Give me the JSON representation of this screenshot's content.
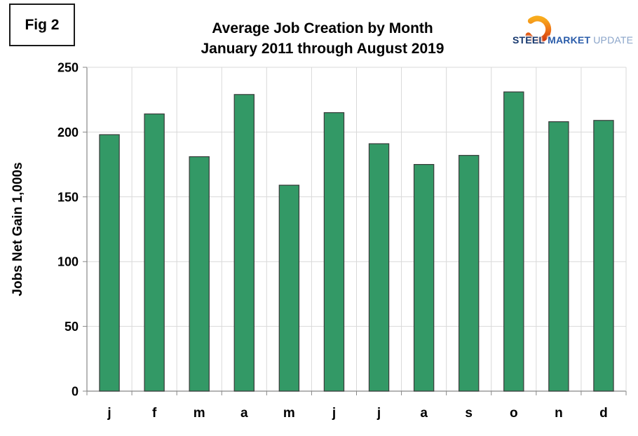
{
  "figure": {
    "label": "Fig 2"
  },
  "title": {
    "line1": "Average Job Creation by Month",
    "line2": "January 2011 through August 2019"
  },
  "logo": {
    "steel": "STEEL",
    "market": "MARKET",
    "update": "UPDATE",
    "colors": {
      "steel_text": "#17386e",
      "market_text": "#2a5caa",
      "update_text": "#8aa4c9",
      "arc_top": "#f8ab1c",
      "arc_mid": "#ee7518",
      "arc_bottom": "#d13a0e"
    }
  },
  "chart_data": {
    "type": "bar",
    "title": "Average Job Creation by Month January 2011 through August 2019",
    "categories": [
      "j",
      "f",
      "m",
      "a",
      "m",
      "j",
      "j",
      "a",
      "s",
      "o",
      "n",
      "d"
    ],
    "values": [
      198,
      214,
      181,
      229,
      159,
      215,
      191,
      175,
      182,
      231,
      208,
      209
    ],
    "xlabel": "",
    "ylabel": "Jobs Net Gain 1,000s",
    "ylim": [
      0,
      250
    ],
    "ytick_step": 50,
    "grid": true,
    "legend_position": "none",
    "bar_color": "#339966",
    "bar_border_color": "#3a3a3a"
  }
}
